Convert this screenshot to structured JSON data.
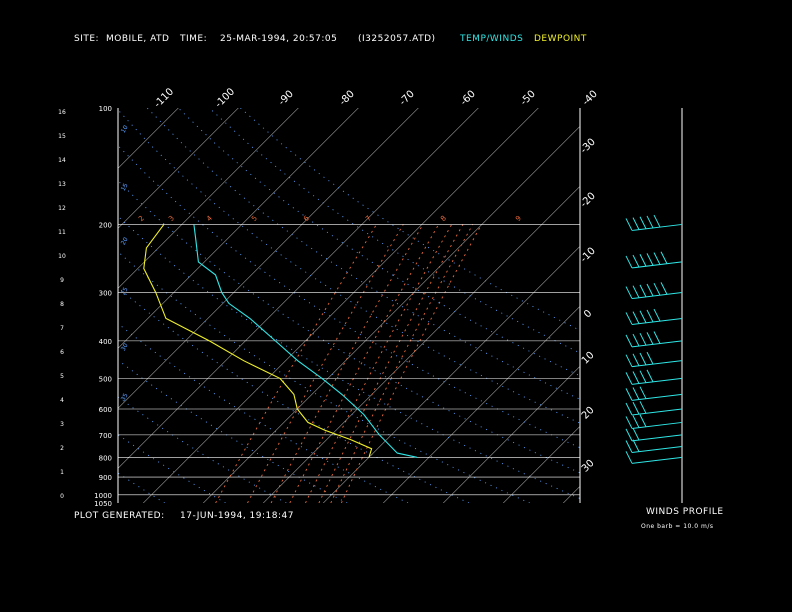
{
  "header": {
    "site_label": "SITE:",
    "site_value": "MOBILE, ATD",
    "time_label": "TIME:",
    "time_value": "25-MAR-1994, 20:57:05",
    "file_value": "(I3252057.ATD)",
    "legend_temp": "TEMP/WINDS",
    "legend_dew": "DEWPOINT"
  },
  "footer": {
    "plot_label": "PLOT GENERATED:",
    "plot_value": "17-JUN-1994, 19:18:47",
    "winds_title": "WINDS PROFILE",
    "winds_note": "One barb = 10.0 m/s"
  },
  "colors": {
    "temp": "#2fe6e6",
    "dew": "#f0f028",
    "isobar": "#ffffff",
    "isotherm": "#ffffff",
    "dry_adiabat": "#5aa0ff",
    "mixing_ratio": "#e86a3a"
  },
  "chart_data": {
    "type": "line",
    "title": "",
    "pressure_levels": [
      100,
      200,
      300,
      400,
      500,
      600,
      700,
      800,
      900,
      1000,
      1050
    ],
    "height_km_ticks": [
      "16",
      "15",
      "14",
      "13",
      "12",
      "11",
      "10",
      "9",
      "8",
      "7",
      "6",
      "5",
      "4",
      "3",
      "2",
      "1",
      "0"
    ],
    "isotherm_top_labels": [
      "-110",
      "-100",
      "-90",
      "-80",
      "-70",
      "-60",
      "-50",
      "-40"
    ],
    "isotherm_right_labels": [
      "-30",
      "-20",
      "-10",
      "0",
      "10",
      "20",
      "30"
    ],
    "dry_adiabat_labels": [
      "10",
      "15",
      "20",
      "25",
      "30",
      "35"
    ],
    "mixing_ratio_labels": [
      "2",
      "3",
      "4",
      "5",
      "6",
      "7",
      "8",
      "9"
    ],
    "temperature_profile": [
      {
        "p": 800,
        "t": 18.0
      },
      {
        "p": 780,
        "t": 14.0
      },
      {
        "p": 700,
        "t": 8.0
      },
      {
        "p": 620,
        "t": 2.0
      },
      {
        "p": 550,
        "t": -5.0
      },
      {
        "p": 500,
        "t": -11.0
      },
      {
        "p": 450,
        "t": -18.0
      },
      {
        "p": 400,
        "t": -25.0
      },
      {
        "p": 350,
        "t": -33.0
      },
      {
        "p": 320,
        "t": -39.0
      },
      {
        "p": 300,
        "t": -42.0
      },
      {
        "p": 270,
        "t": -46.0
      },
      {
        "p": 250,
        "t": -51.0
      },
      {
        "p": 220,
        "t": -55.0
      },
      {
        "p": 200,
        "t": -58.0
      }
    ],
    "dewpoint_profile": [
      {
        "p": 800,
        "t": 10.0
      },
      {
        "p": 760,
        "t": 9.0
      },
      {
        "p": 720,
        "t": 4.0
      },
      {
        "p": 680,
        "t": -2.0
      },
      {
        "p": 650,
        "t": -6.0
      },
      {
        "p": 600,
        "t": -10.0
      },
      {
        "p": 550,
        "t": -13.0
      },
      {
        "p": 500,
        "t": -18.0
      },
      {
        "p": 450,
        "t": -27.0
      },
      {
        "p": 400,
        "t": -36.0
      },
      {
        "p": 350,
        "t": -47.0
      },
      {
        "p": 300,
        "t": -53.0
      },
      {
        "p": 260,
        "t": -59.0
      },
      {
        "p": 230,
        "t": -62.0
      },
      {
        "p": 200,
        "t": -63.0
      }
    ],
    "wind_profile": [
      {
        "p": 200,
        "barbs": 5
      },
      {
        "p": 250,
        "barbs": 6
      },
      {
        "p": 300,
        "barbs": 6
      },
      {
        "p": 350,
        "barbs": 5
      },
      {
        "p": 400,
        "barbs": 5
      },
      {
        "p": 450,
        "barbs": 4
      },
      {
        "p": 500,
        "barbs": 4
      },
      {
        "p": 550,
        "barbs": 3
      },
      {
        "p": 600,
        "barbs": 3
      },
      {
        "p": 650,
        "barbs": 3
      },
      {
        "p": 700,
        "barbs": 2
      },
      {
        "p": 750,
        "barbs": 2
      },
      {
        "p": 800,
        "barbs": 1
      }
    ]
  }
}
